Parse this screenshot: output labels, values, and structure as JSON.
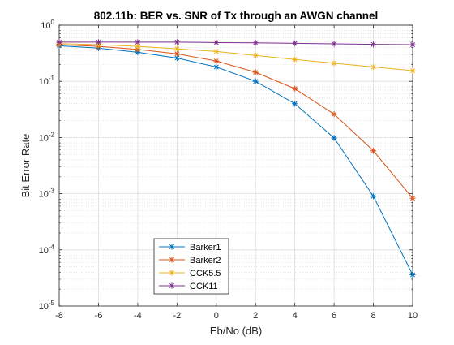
{
  "chart_data": {
    "type": "line",
    "title": "802.11b: BER vs. SNR of Tx through an AWGN channel",
    "xlabel": "Eb/No (dB)",
    "ylabel": "Bit Error Rate",
    "xlim": [
      -8,
      10
    ],
    "ylim": [
      1e-05,
      1
    ],
    "yscale": "log",
    "grid": true,
    "minor_grid": true,
    "legend_position": "bottom-left-center",
    "x_ticks": [
      -8,
      -6,
      -4,
      -2,
      0,
      2,
      4,
      6,
      8,
      10
    ],
    "x_tick_labels": [
      "-8",
      "-6",
      "-4",
      "-2",
      "0",
      "2",
      "4",
      "6",
      "8",
      "10"
    ],
    "y_ticks": [
      1e-05,
      0.0001,
      0.001,
      0.01,
      0.1,
      1
    ],
    "y_tick_labels": [
      {
        "base": "10",
        "exp": "-5"
      },
      {
        "base": "10",
        "exp": "-4"
      },
      {
        "base": "10",
        "exp": "-3"
      },
      {
        "base": "10",
        "exp": "-2"
      },
      {
        "base": "10",
        "exp": "-1"
      },
      {
        "base": "10",
        "exp": "0"
      }
    ],
    "x": [
      -8,
      -6,
      -4,
      -2,
      0,
      2,
      4,
      6,
      8,
      10
    ],
    "marker": "asterisk",
    "series": [
      {
        "name": "Barker1",
        "color": "#0072BD",
        "values": [
          0.43,
          0.39,
          0.33,
          0.26,
          0.18,
          0.1,
          0.04,
          0.0098,
          0.0009,
          3.6e-05
        ]
      },
      {
        "name": "Barker2",
        "color": "#D95319",
        "values": [
          0.45,
          0.42,
          0.37,
          0.31,
          0.23,
          0.145,
          0.074,
          0.026,
          0.0058,
          0.00083
        ]
      },
      {
        "name": "CCK5.5",
        "color": "#EDB120",
        "values": [
          0.47,
          0.45,
          0.42,
          0.38,
          0.34,
          0.29,
          0.245,
          0.21,
          0.18,
          0.155
        ]
      },
      {
        "name": "CCK11",
        "color": "#7E2F8E",
        "values": [
          0.5,
          0.5,
          0.5,
          0.5,
          0.49,
          0.485,
          0.475,
          0.465,
          0.455,
          0.45
        ]
      }
    ]
  }
}
